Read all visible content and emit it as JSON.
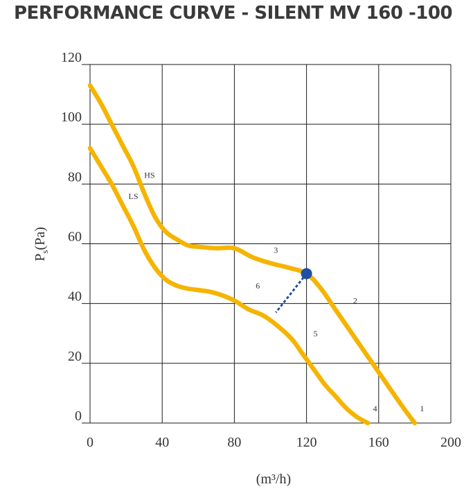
{
  "title": "PERFORMANCE CURVE - SILENT MV 160 -100",
  "chart_data": {
    "type": "line",
    "title": "PERFORMANCE CURVE - SILENT MV 160 -100",
    "xlabel": "(m³/h)",
    "ylabel": "Ps (Pa)",
    "ylabel_main": "P",
    "ylabel_sub": "s",
    "ylabel_unit": "(Pa)",
    "xlim": [
      0,
      200
    ],
    "ylim": [
      0,
      120
    ],
    "x_ticks": [
      0,
      40,
      80,
      120,
      160,
      200
    ],
    "y_ticks": [
      0,
      20,
      40,
      60,
      80,
      100,
      120
    ],
    "grid": true,
    "line_color": "#f5b400",
    "series": [
      {
        "name": "HS",
        "x": [
          0,
          6,
          12,
          18,
          24,
          30,
          36,
          42,
          48,
          54,
          60,
          70,
          80,
          90,
          100,
          110,
          120,
          128,
          136,
          144,
          152,
          160,
          168,
          175,
          180
        ],
        "y": [
          113,
          107,
          100,
          93,
          86,
          77,
          69,
          64,
          61.5,
          59.5,
          59,
          58.5,
          58.5,
          55.5,
          53.5,
          52,
          50,
          45,
          38,
          31,
          24,
          17,
          10,
          4,
          0
        ]
      },
      {
        "name": "LS",
        "x": [
          0,
          6,
          12,
          18,
          24,
          30,
          36,
          42,
          48,
          54,
          60,
          66,
          72,
          80,
          88,
          96,
          104,
          112,
          118,
          124,
          130,
          136,
          142,
          148,
          154
        ],
        "y": [
          92,
          86,
          80,
          73,
          66,
          58,
          52,
          48,
          46,
          45,
          44.5,
          44,
          43,
          41,
          38,
          36,
          32.5,
          28,
          23,
          18,
          13,
          9,
          5,
          2,
          0
        ]
      }
    ],
    "curve_labels": [
      {
        "text": "HS",
        "x": 33,
        "y": 82
      },
      {
        "text": "LS",
        "x": 24,
        "y": 75
      },
      {
        "text": "3",
        "x": 103,
        "y": 57
      },
      {
        "text": "6",
        "x": 93,
        "y": 45
      },
      {
        "text": "2",
        "x": 147,
        "y": 40
      },
      {
        "text": "5",
        "x": 125,
        "y": 29
      },
      {
        "text": "4",
        "x": 158,
        "y": 4
      },
      {
        "text": "1",
        "x": 184,
        "y": 4
      }
    ],
    "operating_point": {
      "x": 120,
      "y": 50
    },
    "dashed_line": {
      "x": [
        120,
        103
      ],
      "y": [
        50,
        37
      ]
    }
  }
}
